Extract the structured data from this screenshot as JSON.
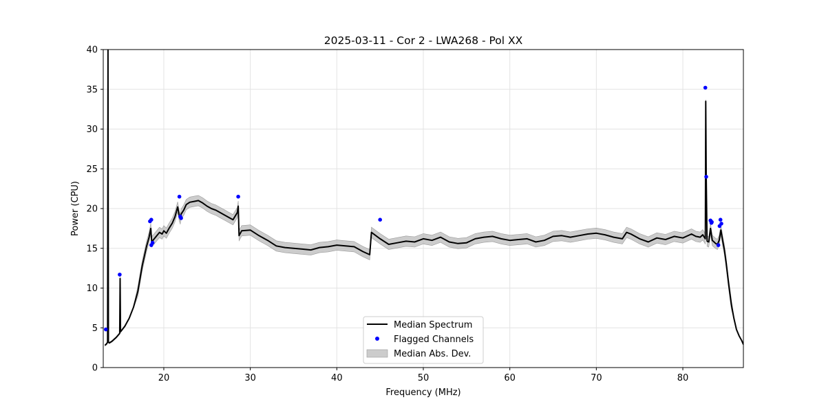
{
  "chart_data": {
    "type": "line",
    "title": "2025-03-11 - Cor 2 - LWA268 - Pol XX",
    "xlabel": "Frequency (MHz)",
    "ylabel": "Power (CPU)",
    "xlim": [
      13.0,
      87.0
    ],
    "ylim": [
      0,
      40
    ],
    "xticks": [
      20,
      30,
      40,
      50,
      60,
      70,
      80
    ],
    "yticks": [
      0,
      5,
      10,
      15,
      20,
      25,
      30,
      35,
      40
    ],
    "grid": true,
    "legend_position": "lower-center",
    "colors": {
      "median": "#000000",
      "flagged": "#0000ff",
      "mad": "#bbbbbb"
    },
    "series": [
      {
        "name": "Median Spectrum",
        "kind": "line",
        "x": [
          13.2,
          13.4,
          13.5,
          13.55,
          13.6,
          13.7,
          14.0,
          14.5,
          14.9,
          14.95,
          15.0,
          15.5,
          16.0,
          16.5,
          17.0,
          17.5,
          18.0,
          18.3,
          18.5,
          18.6,
          18.9,
          19.2,
          19.5,
          19.8,
          20.0,
          20.3,
          20.6,
          21.0,
          21.3,
          21.6,
          21.8,
          21.9,
          22.0,
          22.3,
          22.6,
          23.0,
          23.5,
          24.0,
          24.5,
          25.0,
          25.5,
          26.0,
          26.5,
          27.0,
          27.5,
          28.0,
          28.5,
          28.6,
          28.7,
          29.0,
          30.0,
          31.0,
          32.0,
          33.0,
          34.0,
          35.0,
          36.0,
          37.0,
          38.0,
          39.0,
          40.0,
          41.0,
          42.0,
          43.0,
          43.8,
          44.0,
          45.0,
          46.0,
          47.0,
          48.0,
          49.0,
          50.0,
          51.0,
          52.0,
          53.0,
          54.0,
          55.0,
          56.0,
          57.0,
          58.0,
          59.0,
          60.0,
          61.0,
          62.0,
          63.0,
          64.0,
          65.0,
          66.0,
          67.0,
          68.0,
          69.0,
          70.0,
          71.0,
          72.0,
          73.0,
          73.5,
          74.0,
          75.0,
          76.0,
          77.0,
          78.0,
          79.0,
          80.0,
          81.0,
          81.5,
          82.0,
          82.3,
          82.6,
          82.65,
          82.7,
          82.8,
          83.0,
          83.2,
          83.4,
          83.6,
          83.8,
          84.0,
          84.2,
          84.4,
          84.6,
          84.8,
          85.0,
          85.3,
          85.6,
          85.9,
          86.2,
          86.5,
          86.8,
          87.0
        ],
        "y": [
          2.8,
          3.0,
          3.2,
          40.0,
          3.2,
          3.1,
          3.3,
          3.8,
          4.3,
          11.2,
          4.5,
          5.2,
          6.2,
          7.6,
          9.6,
          12.8,
          15.2,
          16.4,
          17.5,
          15.8,
          16.2,
          16.6,
          17.0,
          16.8,
          17.2,
          16.9,
          17.5,
          18.2,
          19.0,
          20.2,
          19.0,
          18.7,
          19.3,
          19.8,
          20.5,
          20.8,
          20.9,
          21.0,
          20.7,
          20.3,
          20.0,
          19.8,
          19.5,
          19.2,
          18.9,
          18.6,
          19.5,
          20.3,
          16.6,
          17.2,
          17.3,
          16.6,
          16.0,
          15.3,
          15.1,
          15.0,
          14.9,
          14.8,
          15.1,
          15.2,
          15.4,
          15.3,
          15.2,
          14.6,
          14.2,
          17.0,
          16.2,
          15.5,
          15.7,
          15.9,
          15.8,
          16.2,
          16.0,
          16.4,
          15.8,
          15.6,
          15.7,
          16.2,
          16.4,
          16.5,
          16.2,
          16.0,
          16.1,
          16.2,
          15.8,
          16.0,
          16.5,
          16.6,
          16.4,
          16.6,
          16.8,
          16.9,
          16.7,
          16.4,
          16.2,
          17.0,
          16.8,
          16.2,
          15.8,
          16.3,
          16.1,
          16.5,
          16.3,
          16.8,
          16.5,
          16.4,
          16.7,
          16.2,
          33.5,
          24.0,
          15.9,
          15.8,
          17.5,
          16.0,
          15.8,
          15.6,
          15.5,
          16.0,
          17.3,
          16.0,
          14.8,
          13.2,
          10.5,
          8.0,
          6.2,
          4.8,
          4.0,
          3.4,
          2.9
        ],
        "color": "#000000"
      },
      {
        "name": "Flagged Channels",
        "kind": "scatter",
        "x": [
          13.3,
          14.9,
          18.4,
          18.55,
          18.55,
          18.7,
          21.8,
          21.9,
          22.0,
          28.6,
          45.0,
          82.6,
          82.7,
          83.2,
          83.3,
          83.35,
          84.1,
          84.25,
          84.35,
          84.45
        ],
        "y": [
          4.8,
          11.7,
          18.4,
          18.6,
          15.4,
          15.7,
          21.5,
          19.0,
          18.8,
          21.5,
          18.6,
          35.2,
          24.0,
          18.5,
          18.2,
          18.3,
          15.4,
          17.8,
          18.6,
          18.1
        ],
        "color": "#0000ff"
      },
      {
        "name": "Median Abs. Dev.",
        "kind": "band",
        "halfwidth": 0.65,
        "color": "#bbbbbb"
      }
    ]
  },
  "legend": {
    "entries": [
      "Median Spectrum",
      "Flagged Channels",
      "Median Abs. Dev."
    ]
  }
}
